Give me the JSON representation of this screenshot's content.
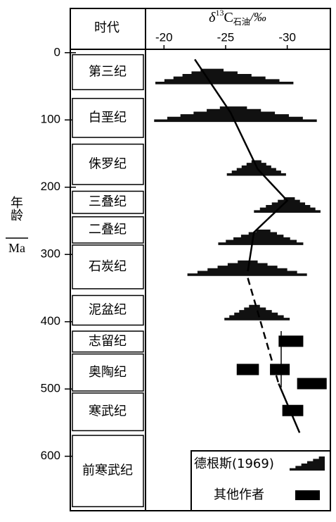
{
  "chart_data": {
    "type": "isotope-range",
    "period_header": "时代",
    "x_label": {
      "symbol": "δ",
      "sup": "13",
      "main": "C",
      "sub": "石油",
      "unit": "/‰"
    },
    "y_label": {
      "name": "年龄",
      "unit": "Ma"
    },
    "xlim": [
      -18.5,
      -33.5
    ],
    "xticks": [
      -20,
      -25,
      -30
    ],
    "ylim": [
      -5,
      681
    ],
    "yticks": [
      0,
      100,
      200,
      300,
      400,
      500,
      600
    ],
    "periods": [
      {
        "name": "第三纪",
        "start": 3,
        "end": 55
      },
      {
        "name": "白垩纪",
        "start": 68,
        "end": 126
      },
      {
        "name": "侏罗纪",
        "start": 136,
        "end": 196
      },
      {
        "name": "三叠纪",
        "start": 206,
        "end": 239
      },
      {
        "name": "二叠纪",
        "start": 244,
        "end": 283
      },
      {
        "name": "石炭纪",
        "start": 286,
        "end": 351
      },
      {
        "name": "泥盆纪",
        "start": 361,
        "end": 405
      },
      {
        "name": "志留纪",
        "start": 414,
        "end": 445
      },
      {
        "name": "奥陶纪",
        "start": 448,
        "end": 503
      },
      {
        "name": "寒武纪",
        "start": 506,
        "end": 562
      },
      {
        "name": "前寒武纪",
        "start": 569,
        "end": 675
      }
    ],
    "distributions": [
      {
        "age": 47,
        "from": -19.3,
        "peak": -23.7,
        "to": -30.5
      },
      {
        "age": 103,
        "from": -19.2,
        "peak": -25.6,
        "to": -32.4
      },
      {
        "age": 183,
        "from": -25.1,
        "peak": -27.5,
        "to": -29.9
      },
      {
        "age": 238,
        "from": -27.3,
        "peak": -30.2,
        "to": -32.7
      },
      {
        "age": 286,
        "from": -24.4,
        "peak": -28.1,
        "to": -31.3
      },
      {
        "age": 332,
        "from": -21.9,
        "peak": -26.8,
        "to": -31.6
      },
      {
        "age": 398,
        "from": -24.9,
        "peak": -27.3,
        "to": -30.2
      }
    ],
    "trend": [
      {
        "dashed": false,
        "x": [
          -22.5,
          -25.4,
          -27.6,
          -30.0,
          -27.3,
          -26.8
        ],
        "y": [
          10,
          89,
          173,
          220,
          267,
          325
        ]
      },
      {
        "dashed": true,
        "x": [
          -26.8,
          -29.3
        ],
        "y": [
          335,
          492
        ]
      },
      {
        "dashed": false,
        "x": [
          -29.3,
          -31.0
        ],
        "y": [
          492,
          565
        ]
      }
    ],
    "bars": [
      {
        "age": 429,
        "from": -29.3,
        "to": -31.3
      },
      {
        "age": 471,
        "from": -25.9,
        "to": -27.7
      },
      {
        "age": 471,
        "from": -28.6,
        "to": -30.2
      },
      {
        "age": 492,
        "from": -30.8,
        "to": -33.2
      },
      {
        "age": 532,
        "from": -29.6,
        "to": -31.3
      }
    ],
    "legend": {
      "distribution": "德根斯(1969)",
      "bars": "其他作者"
    }
  }
}
